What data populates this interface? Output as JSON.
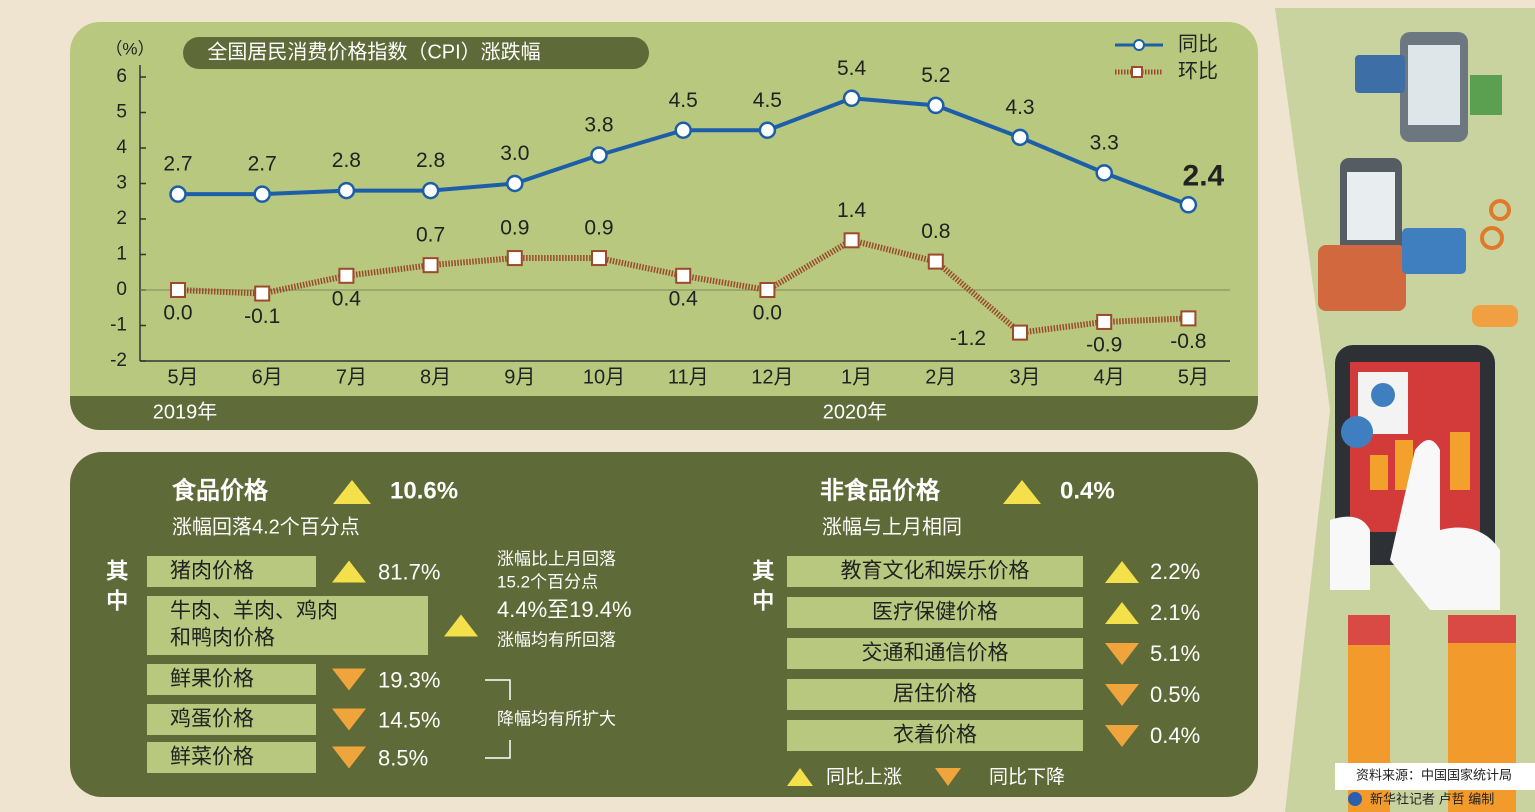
{
  "chart_data": {
    "type": "line",
    "title": "全国居民消费价格指数（CPI）涨跌幅",
    "y_label": "（%）",
    "categories": [
      "5月",
      "6月",
      "7月",
      "8月",
      "9月",
      "10月",
      "11月",
      "12月",
      "1月",
      "2月",
      "3月",
      "4月",
      "5月"
    ],
    "year_labels": [
      "2019年",
      "2020年"
    ],
    "series": [
      {
        "name": "同比",
        "color": "#1d5ea8",
        "values": [
          2.7,
          2.7,
          2.8,
          2.8,
          3.0,
          3.8,
          4.5,
          4.5,
          5.4,
          5.2,
          4.3,
          3.3,
          2.4
        ],
        "value_labels": [
          "2.7",
          "2.7",
          "2.8",
          "2.8",
          "3.0",
          "3.8",
          "4.5",
          "4.5",
          "5.4",
          "5.2",
          "4.3",
          "3.3",
          "2.4"
        ]
      },
      {
        "name": "环比",
        "color": "#9b4a2c",
        "values": [
          0.0,
          -0.1,
          0.4,
          0.7,
          0.9,
          0.9,
          0.4,
          0.0,
          1.4,
          0.8,
          -1.2,
          -0.9,
          -0.8
        ],
        "value_labels": [
          "0.0",
          "-0.1",
          "0.4",
          "0.7",
          "0.9",
          "0.9",
          "0.4",
          "0.0",
          "1.4",
          "0.8",
          "-1.2",
          "-0.9",
          "-0.8"
        ]
      }
    ],
    "ylim": [
      -2,
      6
    ],
    "yticks": [
      -2,
      -1,
      0,
      1,
      2,
      3,
      4,
      5,
      6
    ],
    "legend": "top-right"
  },
  "food": {
    "title": "食品价格",
    "direction": "up",
    "change": "10.6%",
    "note": "涨幅回落4.2个百分点",
    "side": "其中",
    "items": [
      {
        "label": [
          "猪肉价格"
        ],
        "direction": "up",
        "change": "81.7%",
        "note": [
          "涨幅比上月回落",
          "15.2个百分点"
        ]
      },
      {
        "label": [
          "牛肉、羊肉、鸡肉",
          "和鸭肉价格"
        ],
        "direction": "up",
        "change": "4.4%至19.4%",
        "note": [
          "涨幅均有所回落"
        ]
      },
      {
        "label": [
          "鲜果价格"
        ],
        "direction": "down",
        "change": "19.3%"
      },
      {
        "label": [
          "鸡蛋价格"
        ],
        "direction": "down",
        "change": "14.5%"
      },
      {
        "label": [
          "鲜菜价格"
        ],
        "direction": "down",
        "change": "8.5%"
      }
    ],
    "group_note": "降幅均有所扩大"
  },
  "nonfood": {
    "title": "非食品价格",
    "direction": "up",
    "change": "0.4%",
    "note": "涨幅与上月相同",
    "side": "其中",
    "items": [
      {
        "label": "教育文化和娱乐价格",
        "direction": "up",
        "change": "2.2%"
      },
      {
        "label": "医疗保健价格",
        "direction": "up",
        "change": "2.1%"
      },
      {
        "label": "交通和通信价格",
        "direction": "down",
        "change": "5.1%"
      },
      {
        "label": "居住价格",
        "direction": "down",
        "change": "0.5%"
      },
      {
        "label": "衣着价格",
        "direction": "down",
        "change": "0.4%"
      }
    ]
  },
  "legend": {
    "up": "同比上涨",
    "down": "同比下降"
  },
  "source": "资料来源：中国国家统计局",
  "credit": "新华社记者 卢哲 编制"
}
